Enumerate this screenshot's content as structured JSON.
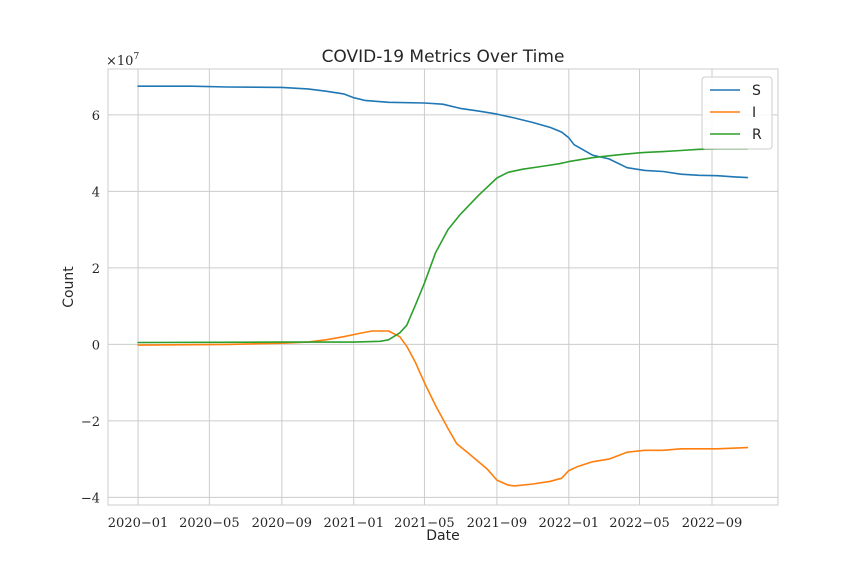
{
  "chart_data": {
    "type": "line",
    "title": "COVID-19 Metrics Over Time",
    "xlabel": "Date",
    "ylabel": "Count",
    "y_scale_label": "×10^7",
    "y_multiplier": 10000000,
    "ylim": [
      -4.2,
      7.2
    ],
    "xlim": [
      "2019-11-11",
      "2022-12-22"
    ],
    "grid": true,
    "legend_position": "top-right",
    "x_ticks": [
      {
        "date": "2020-01-01",
        "label": "2020−01"
      },
      {
        "date": "2020-05-01",
        "label": "2020−05"
      },
      {
        "date": "2020-09-01",
        "label": "2020−09"
      },
      {
        "date": "2021-01-01",
        "label": "2021−01"
      },
      {
        "date": "2021-05-01",
        "label": "2021−05"
      },
      {
        "date": "2021-09-01",
        "label": "2021−09"
      },
      {
        "date": "2022-01-01",
        "label": "2022−01"
      },
      {
        "date": "2022-05-01",
        "label": "2022−05"
      },
      {
        "date": "2022-09-01",
        "label": "2022−09"
      }
    ],
    "y_ticks": [
      {
        "value": 6,
        "label": "6"
      },
      {
        "value": 4,
        "label": "4"
      },
      {
        "value": 2,
        "label": "2"
      },
      {
        "value": 0,
        "label": "0"
      },
      {
        "value": -2,
        "label": "−2"
      },
      {
        "value": -4,
        "label": "−4"
      }
    ],
    "series": [
      {
        "name": "S",
        "color": "#1f77b4",
        "points": [
          [
            "2020-01-01",
            6.75
          ],
          [
            "2020-04-01",
            6.75
          ],
          [
            "2020-06-01",
            6.73
          ],
          [
            "2020-09-01",
            6.72
          ],
          [
            "2020-10-15",
            6.68
          ],
          [
            "2020-11-15",
            6.62
          ],
          [
            "2020-12-15",
            6.55
          ],
          [
            "2021-01-01",
            6.45
          ],
          [
            "2021-01-20",
            6.38
          ],
          [
            "2021-03-01",
            6.33
          ],
          [
            "2021-05-01",
            6.31
          ],
          [
            "2021-06-01",
            6.28
          ],
          [
            "2021-07-01",
            6.17
          ],
          [
            "2021-08-01",
            6.1
          ],
          [
            "2021-09-01",
            6.02
          ],
          [
            "2021-10-01",
            5.92
          ],
          [
            "2021-11-01",
            5.8
          ],
          [
            "2021-12-01",
            5.67
          ],
          [
            "2021-12-20",
            5.55
          ],
          [
            "2022-01-01",
            5.4
          ],
          [
            "2022-01-10",
            5.22
          ],
          [
            "2022-02-10",
            4.95
          ],
          [
            "2022-03-10",
            4.85
          ],
          [
            "2022-04-10",
            4.62
          ],
          [
            "2022-05-10",
            4.55
          ],
          [
            "2022-06-10",
            4.52
          ],
          [
            "2022-07-10",
            4.45
          ],
          [
            "2022-08-10",
            4.42
          ],
          [
            "2022-09-10",
            4.41
          ],
          [
            "2022-10-10",
            4.38
          ],
          [
            "2022-10-31",
            4.36
          ]
        ]
      },
      {
        "name": "I",
        "color": "#ff7f0e",
        "points": [
          [
            "2020-01-01",
            -0.02
          ],
          [
            "2020-06-01",
            0.0
          ],
          [
            "2020-09-01",
            0.03
          ],
          [
            "2020-10-15",
            0.06
          ],
          [
            "2020-11-15",
            0.12
          ],
          [
            "2020-12-15",
            0.2
          ],
          [
            "2021-01-15",
            0.3
          ],
          [
            "2021-02-01",
            0.35
          ],
          [
            "2021-03-01",
            0.35
          ],
          [
            "2021-03-20",
            0.2
          ],
          [
            "2021-04-01",
            -0.05
          ],
          [
            "2021-04-15",
            -0.45
          ],
          [
            "2021-05-01",
            -1.0
          ],
          [
            "2021-05-20",
            -1.6
          ],
          [
            "2021-06-10",
            -2.2
          ],
          [
            "2021-06-25",
            -2.6
          ],
          [
            "2021-07-15",
            -2.85
          ],
          [
            "2021-08-15",
            -3.25
          ],
          [
            "2021-09-01",
            -3.55
          ],
          [
            "2021-09-20",
            -3.68
          ],
          [
            "2021-10-01",
            -3.7
          ],
          [
            "2021-11-01",
            -3.65
          ],
          [
            "2021-12-01",
            -3.58
          ],
          [
            "2021-12-20",
            -3.5
          ],
          [
            "2022-01-01",
            -3.3
          ],
          [
            "2022-01-15",
            -3.2
          ],
          [
            "2022-02-10",
            -3.07
          ],
          [
            "2022-03-10",
            -3.0
          ],
          [
            "2022-04-10",
            -2.82
          ],
          [
            "2022-05-10",
            -2.77
          ],
          [
            "2022-06-10",
            -2.77
          ],
          [
            "2022-07-10",
            -2.73
          ],
          [
            "2022-08-10",
            -2.73
          ],
          [
            "2022-09-10",
            -2.73
          ],
          [
            "2022-10-31",
            -2.7
          ]
        ]
      },
      {
        "name": "R",
        "color": "#2ca02c",
        "points": [
          [
            "2020-01-01",
            0.05
          ],
          [
            "2020-09-01",
            0.06
          ],
          [
            "2021-01-01",
            0.06
          ],
          [
            "2021-02-15",
            0.08
          ],
          [
            "2021-03-01",
            0.12
          ],
          [
            "2021-03-20",
            0.3
          ],
          [
            "2021-04-01",
            0.5
          ],
          [
            "2021-04-15",
            1.0
          ],
          [
            "2021-05-01",
            1.6
          ],
          [
            "2021-05-20",
            2.4
          ],
          [
            "2021-06-10",
            3.0
          ],
          [
            "2021-07-01",
            3.4
          ],
          [
            "2021-08-01",
            3.9
          ],
          [
            "2021-09-01",
            4.35
          ],
          [
            "2021-09-20",
            4.5
          ],
          [
            "2021-10-15",
            4.58
          ],
          [
            "2021-11-15",
            4.65
          ],
          [
            "2021-12-15",
            4.72
          ],
          [
            "2022-01-01",
            4.78
          ],
          [
            "2022-02-10",
            4.88
          ],
          [
            "2022-03-10",
            4.93
          ],
          [
            "2022-04-10",
            4.98
          ],
          [
            "2022-05-10",
            5.02
          ],
          [
            "2022-06-10",
            5.04
          ],
          [
            "2022-07-10",
            5.07
          ],
          [
            "2022-08-10",
            5.1
          ],
          [
            "2022-09-10",
            5.11
          ],
          [
            "2022-10-31",
            5.11
          ]
        ]
      }
    ]
  }
}
